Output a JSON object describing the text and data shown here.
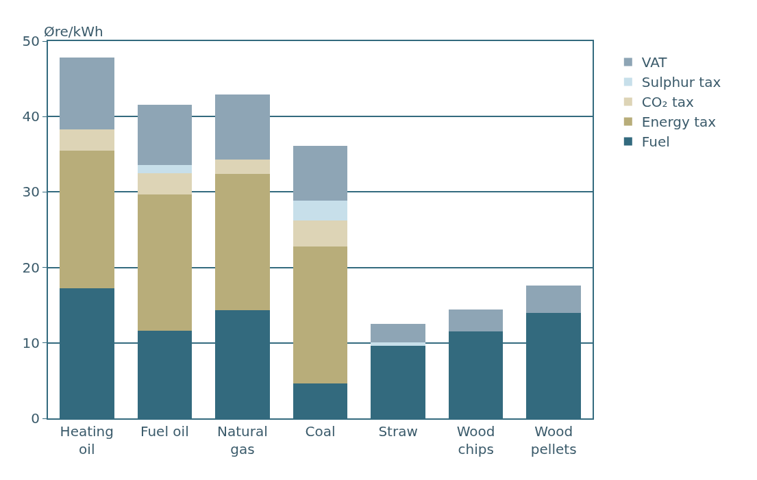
{
  "chart_data": {
    "type": "bar",
    "stacked": true,
    "ylabel": "Øre/kWh",
    "categories": [
      "Heating\noil",
      "Fuel oil",
      "Natural\ngas",
      "Coal",
      "Straw",
      "Wood\nchips",
      "Wood\npellets"
    ],
    "series": [
      {
        "name": "Fuel",
        "color": "#336a7e",
        "values": [
          17.2,
          11.6,
          14.3,
          4.6,
          9.6,
          11.5,
          14.0
        ]
      },
      {
        "name": "Energy tax",
        "color": "#b8ad7a",
        "values": [
          18.3,
          18.1,
          18.1,
          18.2,
          0,
          0,
          0
        ]
      },
      {
        "name": "CO₂ tax",
        "color": "#ddd4b6",
        "values": [
          2.8,
          2.8,
          1.9,
          3.4,
          0,
          0,
          0
        ]
      },
      {
        "name": "Sulphur tax",
        "color": "#c7dfea",
        "values": [
          0,
          1.1,
          0,
          2.7,
          0.5,
          0,
          0
        ]
      },
      {
        "name": "VAT",
        "color": "#8ea5b5",
        "values": [
          9.5,
          8.0,
          8.6,
          7.2,
          2.4,
          2.9,
          3.6
        ]
      }
    ],
    "ylim": [
      0,
      50
    ],
    "yticks": [
      0,
      10,
      20,
      30,
      40,
      50
    ],
    "grid": "y",
    "legend": "right"
  }
}
